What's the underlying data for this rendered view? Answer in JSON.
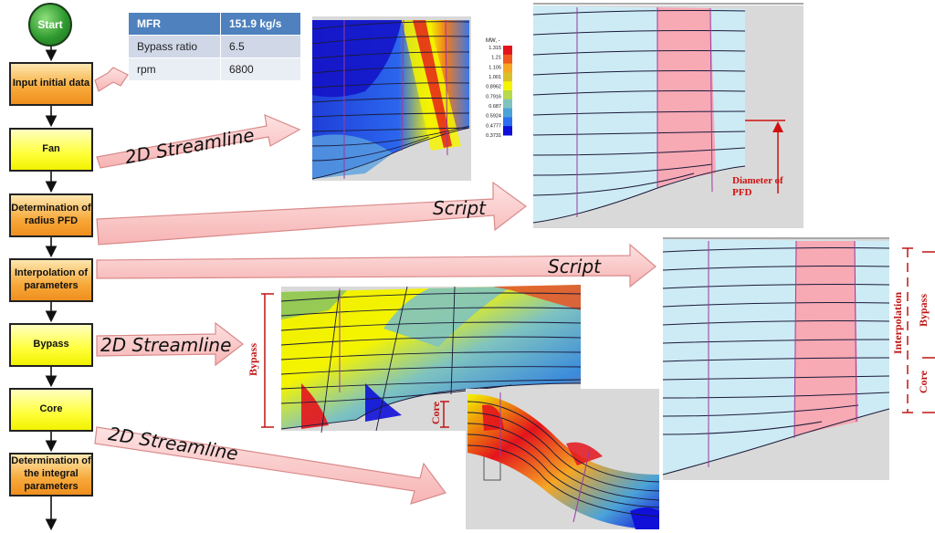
{
  "flowchart": {
    "start": "Start",
    "steps": [
      "Input initial data",
      "Fan",
      "Determination of radius PFD",
      "Interpolation of parameters",
      "Bypass",
      "Core",
      "Determination of the integral parameters"
    ]
  },
  "params_table": {
    "rows": [
      {
        "key": "MFR",
        "value": "151.9 kg/s"
      },
      {
        "key": "Bypass ratio",
        "value": "6.5"
      },
      {
        "key": "rpm",
        "value": "6800"
      }
    ]
  },
  "arrow_labels": {
    "fan": "2D Streamline",
    "pfd": "Script",
    "interp": "Script",
    "bypass": "2D Streamline",
    "core": "2D Streamline"
  },
  "annotations": {
    "diameter_pfd": "Diameter of PFD",
    "bypass_left": "Bypass",
    "core_left": "Core",
    "interpolation_right": "Interpolation",
    "bypass_right": "Bypass",
    "core_right": "Core"
  },
  "colorbar": {
    "title": "MW, -",
    "ticks": [
      "1.315",
      "1.21",
      "1.105",
      "1.001",
      "0.8962",
      "0.7916",
      "0.687",
      "0.5924",
      "0.4777",
      "0.3731"
    ],
    "colors": [
      "#e4141c",
      "#f05a1e",
      "#f5a623",
      "#d9c02a",
      "#f4f400",
      "#b7d94a",
      "#7fc3c0",
      "#4aa3d8",
      "#2d6ff0",
      "#1010d8"
    ]
  }
}
